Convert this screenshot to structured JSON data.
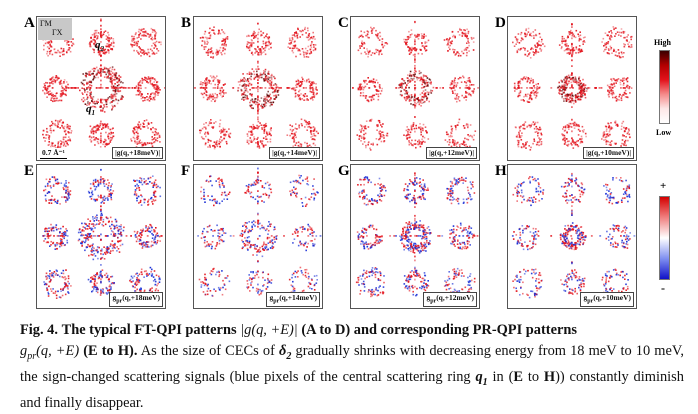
{
  "figure": {
    "panels_top": [
      {
        "letter": "A",
        "label": "|g(q,+18meV)|"
      },
      {
        "letter": "B",
        "label": "|g(q,+14meV)|"
      },
      {
        "letter": "C",
        "label": "|g(q,+12meV)|"
      },
      {
        "letter": "D",
        "label": "|g(q,+10meV)|"
      }
    ],
    "panels_bottom": [
      {
        "letter": "E",
        "label": "g",
        "sub": "pr",
        "tail": "(q,+18meV)"
      },
      {
        "letter": "F",
        "label": "g",
        "sub": "pr",
        "tail": "(q,+14meV)"
      },
      {
        "letter": "G",
        "label": "g",
        "sub": "pr",
        "tail": "(q,+12meV)"
      },
      {
        "letter": "H",
        "label": "g",
        "sub": "pr",
        "tail": "(q,+10meV)"
      }
    ],
    "scale_bar": "0.7 Å⁻¹",
    "direction_gm": "ΓM",
    "direction_gx": "ΓX",
    "q1_base": "q",
    "q1_sub": "1",
    "q2_base": "q",
    "q2_sub": "2",
    "colorbar_top": {
      "high": "High",
      "low": "Low"
    },
    "colorbar_bottom": {
      "plus": "+",
      "minus": "-"
    },
    "colors": {
      "red": "#e3121b",
      "blue": "#1a2fd6",
      "dark_red": "#5a0000"
    }
  },
  "caption": {
    "fig_label": "Fig. 4.",
    "title_part1": "The typical FT-QPI patterns",
    "abs_g": "|g(q, +E)|",
    "a_to_d": "(A to D)",
    "title_part2": "and corresponding PR-QPI patterns",
    "gpr_g": "g",
    "gpr_sub": "pr",
    "gpr_args": "(q, +E)",
    "e_to_h": "(E to H).",
    "body1": "As the size of CECs of",
    "delta": "δ",
    "delta_sub": "2",
    "body2": "gradually shrinks with decreasing energy from 18 meV to 10 meV, the sign-changed scattering signals (blue pixels of the central scattering ring",
    "q1": "q",
    "q1_sub": "1",
    "body3": "in",
    "paren_open": "(",
    "e_letter": "E",
    "to_word": "to",
    "h_letter": "H",
    "body4": ")) constantly diminish and finally disappear."
  }
}
